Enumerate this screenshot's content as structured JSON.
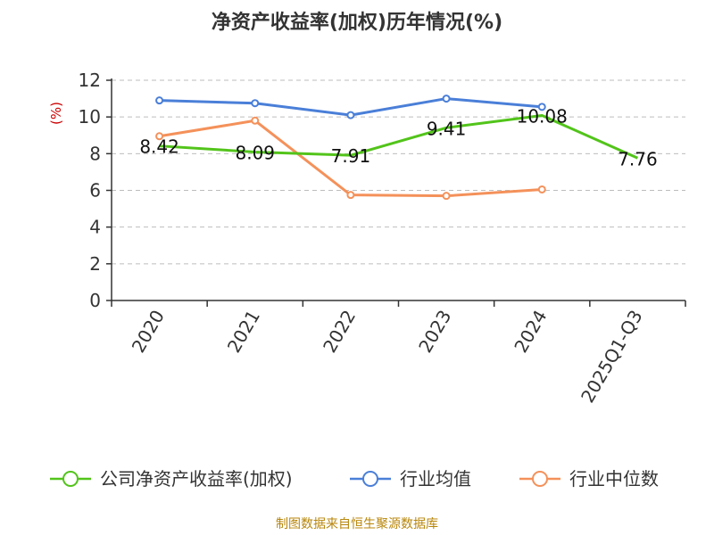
{
  "chart_data": {
    "type": "line",
    "title": "净资产收益率(加权)历年情况(%)",
    "ylabel": "(%)",
    "categories": [
      "2020",
      "2021",
      "2022",
      "2023",
      "2024",
      "2025Q1-Q3"
    ],
    "ylim": [
      0,
      12
    ],
    "yticks": [
      0,
      2,
      4,
      6,
      8,
      10,
      12
    ],
    "grid": true,
    "legend_position": "bottom",
    "series": [
      {
        "name": "公司净资产收益率(加权)",
        "color": "#52c41a",
        "values": [
          8.42,
          8.09,
          7.91,
          9.41,
          10.08,
          7.76
        ],
        "labels": [
          "8.42",
          "8.09",
          "7.91",
          "9.41",
          "10.08",
          "7.76"
        ],
        "show_markers": false
      },
      {
        "name": "行业均值",
        "color": "#4a7fd8",
        "values": [
          10.9,
          10.75,
          10.1,
          11.0,
          10.55,
          null
        ],
        "show_markers": true
      },
      {
        "name": "行业中位数",
        "color": "#f4915a",
        "values": [
          8.95,
          9.8,
          5.75,
          5.7,
          6.05,
          null
        ],
        "show_markers": true
      }
    ]
  },
  "source_text": "制图数据来自恒生聚源数据库"
}
